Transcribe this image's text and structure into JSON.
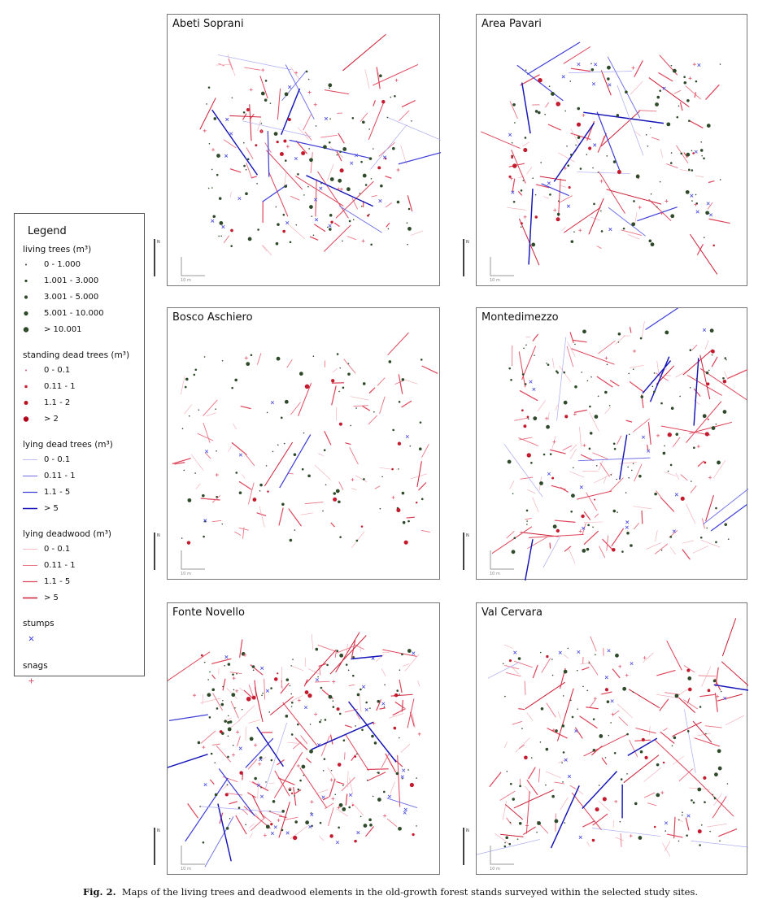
{
  "legend": {
    "title": "Legend",
    "groups": [
      {
        "heading": "living trees (m³)",
        "items": [
          {
            "label": "0 - 1.000",
            "symbol": "dot",
            "color": "#2f4a2a",
            "size": 1
          },
          {
            "label": "1.001 - 3.000",
            "symbol": "dot",
            "color": "#2f4a2a",
            "size": 1.6
          },
          {
            "label": "3.001 - 5.000",
            "symbol": "dot",
            "color": "#2f4a2a",
            "size": 2.1
          },
          {
            "label": "5.001 - 10.000",
            "symbol": "dot",
            "color": "#2f4a2a",
            "size": 2.6
          },
          {
            "label": "> 10.001",
            "symbol": "dot",
            "color": "#2f4a2a",
            "size": 3.2
          }
        ]
      },
      {
        "heading": "standing dead trees (m³)",
        "items": [
          {
            "label": "0 - 0.1",
            "symbol": "dot",
            "color": "#d6546a",
            "size": 1
          },
          {
            "label": "0.11 - 1",
            "symbol": "dot",
            "color": "#cc2233",
            "size": 1.8
          },
          {
            "label": "1.1 - 2",
            "symbol": "dot",
            "color": "#bb0f22",
            "size": 2.5
          },
          {
            "label": "> 2",
            "symbol": "dot",
            "color": "#b00018",
            "size": 3.2
          }
        ]
      },
      {
        "heading": "lying dead trees (m³)",
        "items": [
          {
            "label": "0 - 0.1",
            "symbol": "line",
            "color": "#a9a9f2",
            "size": 0.7
          },
          {
            "label": "0.11 - 1",
            "symbol": "line",
            "color": "#6f6fe8",
            "size": 1
          },
          {
            "label": "1.1 - 5",
            "symbol": "line",
            "color": "#3e3ed8",
            "size": 1.2
          },
          {
            "label": "> 5",
            "symbol": "line",
            "color": "#1414b8",
            "size": 1.5
          }
        ]
      },
      {
        "heading": "lying deadwood (m³)",
        "items": [
          {
            "label": "0 - 0.1",
            "symbol": "line",
            "color": "#f2a7b2",
            "size": 0.7
          },
          {
            "label": "0.11 - 1",
            "symbol": "line",
            "color": "#e87384",
            "size": 1
          },
          {
            "label": "1.1 - 5",
            "symbol": "line",
            "color": "#dd4459",
            "size": 1.2
          },
          {
            "label": "> 5",
            "symbol": "line",
            "color": "#cc1f36",
            "size": 1.5
          }
        ]
      },
      {
        "heading": "stumps",
        "items": [
          {
            "label": "",
            "symbol": "x",
            "color": "#4a4adf",
            "size": 1
          }
        ]
      },
      {
        "heading": "snags",
        "items": [
          {
            "label": "",
            "symbol": "plus",
            "color": "#e05a6e",
            "size": 1
          }
        ]
      }
    ]
  },
  "panels": [
    {
      "title": "Abeti Soprani",
      "scale_label": "10 m",
      "north_label": "N"
    },
    {
      "title": "Area Pavari",
      "scale_label": "10 m",
      "north_label": "N"
    },
    {
      "title": "Bosco Aschiero",
      "scale_label": "10 m",
      "north_label": "N"
    },
    {
      "title": "Montedimezzo",
      "scale_label": "10 m",
      "north_label": "N"
    },
    {
      "title": "Fonte Novello",
      "scale_label": "10 m",
      "north_label": "N"
    },
    {
      "title": "Val Cervara",
      "scale_label": "10 m",
      "north_label": "N"
    }
  ],
  "caption": {
    "label": "Fig. 2.",
    "text": "Maps of the living trees and deadwood elements in the old-growth forest stands surveyed within the selected study sites."
  }
}
